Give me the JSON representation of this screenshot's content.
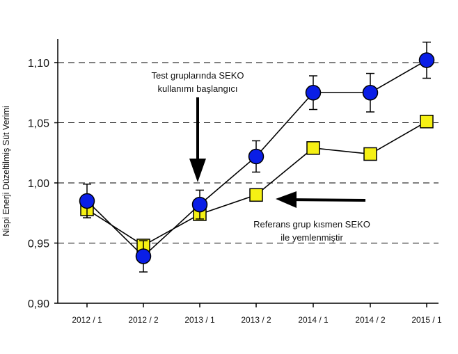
{
  "chart_data": {
    "type": "line",
    "ylabel": "Nispi Enerji Düzeltilmiş Süt Verimi",
    "xlabel": "",
    "categories": [
      "2012 / 1",
      "2012 / 2",
      "2013 / 1",
      "2013 / 2",
      "2014 / 1",
      "2014 / 2",
      "2015 / 1"
    ],
    "ylim": [
      0.9,
      1.125
    ],
    "yticks": [
      0.9,
      0.95,
      1.0,
      1.05,
      1.1
    ],
    "ytick_labels": [
      "0,90",
      "0,95",
      "1,00",
      "1,05",
      "1,10"
    ],
    "gridlines": [
      0.95,
      1.0,
      1.05,
      1.1
    ],
    "series": [
      {
        "marker": "circle",
        "color": "#0a1ee6",
        "values": [
          0.985,
          0.939,
          0.982,
          1.022,
          1.075,
          1.075,
          1.102
        ],
        "error": [
          0.014,
          0.013,
          0.012,
          0.013,
          0.014,
          0.016,
          0.015
        ]
      },
      {
        "marker": "square",
        "color": "#f5f014",
        "values": [
          0.978,
          0.948,
          0.974,
          0.99,
          1.029,
          1.024,
          1.051
        ],
        "error": [
          0.007,
          0.0,
          0.0,
          0.0,
          0.0,
          0.0,
          0.0
        ]
      }
    ],
    "annotations": [
      {
        "lines": [
          "Test gruplarında SEKO",
          "kullanımı başlangıcı"
        ],
        "arrow": "down",
        "points_to": "2013 / 1"
      },
      {
        "lines": [
          "Referans grup kısmen SEKO",
          "ile yemlenmiştir"
        ],
        "arrow": "left",
        "points_to": "2013 / 2"
      }
    ]
  }
}
